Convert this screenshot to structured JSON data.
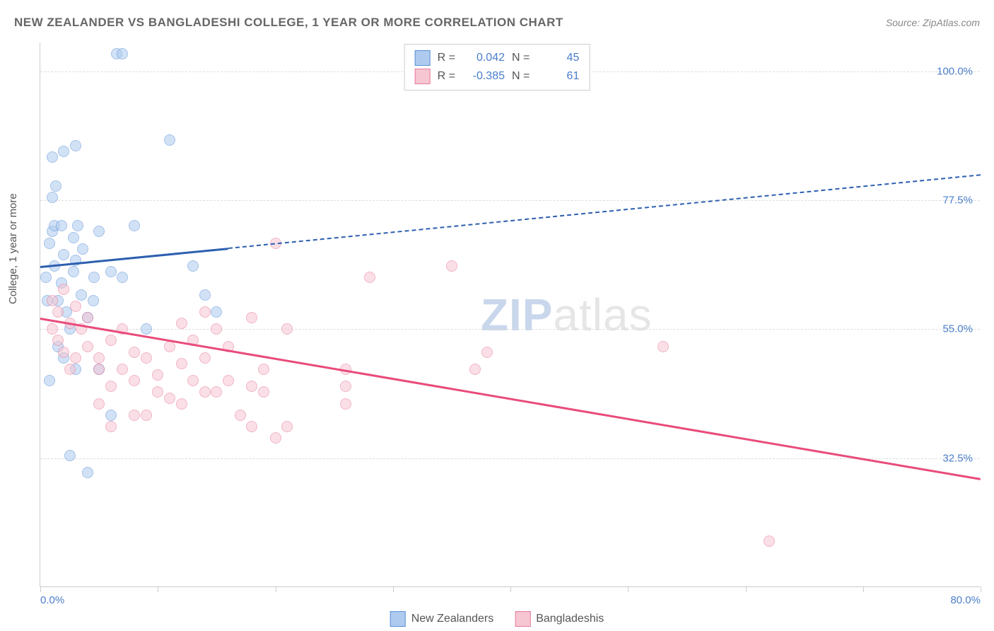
{
  "title": "NEW ZEALANDER VS BANGLADESHI COLLEGE, 1 YEAR OR MORE CORRELATION CHART",
  "source": "Source: ZipAtlas.com",
  "ylabel": "College, 1 year or more",
  "watermark": {
    "part1": "ZIP",
    "part2": "atlas"
  },
  "chart": {
    "type": "scatter",
    "background_color": "#ffffff",
    "grid_color": "#dddddd",
    "axis_color": "#cccccc",
    "xlim": [
      0,
      80
    ],
    "ylim": [
      10,
      105
    ],
    "xticks": [
      0,
      10,
      20,
      30,
      40,
      50,
      60,
      70,
      80
    ],
    "xtick_labels_shown": {
      "0": "0.0%",
      "80": "80.0%"
    },
    "yticks": [
      32.5,
      55.0,
      77.5,
      100.0
    ],
    "ytick_labels": [
      "32.5%",
      "55.0%",
      "77.5%",
      "100.0%"
    ],
    "tick_label_color": "#4a7ec9",
    "tick_label_fontsize": 15,
    "axis_label_fontsize": 15,
    "axis_label_color": "#555555",
    "marker_radius": 8,
    "marker_opacity": 0.55,
    "series": [
      {
        "name": "New Zealanders",
        "marker_fill": "#aecbef",
        "marker_stroke": "#5a8fd6",
        "trend_color": "#2d5fb0",
        "trend_width": 3,
        "trend_dash_continuation": "5,5",
        "R": "0.042",
        "N": "45",
        "trend": {
          "x1": 0,
          "y1": 66,
          "x2": 80,
          "y2": 82,
          "solid_until_x": 16
        },
        "points": [
          [
            0.5,
            64
          ],
          [
            0.8,
            70
          ],
          [
            1,
            72
          ],
          [
            1.2,
            66
          ],
          [
            1.5,
            60
          ],
          [
            1.8,
            63
          ],
          [
            2,
            68
          ],
          [
            2.2,
            58
          ],
          [
            2.5,
            55
          ],
          [
            2.8,
            71
          ],
          [
            3,
            67
          ],
          [
            3.2,
            73
          ],
          [
            3.5,
            61
          ],
          [
            1,
            78
          ],
          [
            1.3,
            80
          ],
          [
            6.5,
            103
          ],
          [
            7,
            103
          ],
          [
            2,
            86
          ],
          [
            3,
            87
          ],
          [
            1,
            85
          ],
          [
            11,
            88
          ],
          [
            5,
            72
          ],
          [
            6,
            65
          ],
          [
            4,
            57
          ],
          [
            5,
            48
          ],
          [
            1.5,
            52
          ],
          [
            2,
            50
          ],
          [
            3,
            48
          ],
          [
            0.8,
            46
          ],
          [
            4.5,
            60
          ],
          [
            7,
            64
          ],
          [
            13,
            66
          ],
          [
            14,
            61
          ],
          [
            15,
            58
          ],
          [
            2.5,
            33
          ],
          [
            4,
            30
          ],
          [
            6,
            40
          ],
          [
            8,
            73
          ],
          [
            1.2,
            73
          ],
          [
            1.8,
            73
          ],
          [
            2.8,
            65
          ],
          [
            0.6,
            60
          ],
          [
            9,
            55
          ],
          [
            3.6,
            69
          ],
          [
            4.6,
            64
          ]
        ]
      },
      {
        "name": "Bangladeshis",
        "marker_fill": "#f6c6d2",
        "marker_stroke": "#e77a9b",
        "trend_color": "#e94b7b",
        "trend_width": 3,
        "R": "-0.385",
        "N": "61",
        "trend": {
          "x1": 0,
          "y1": 57,
          "x2": 80,
          "y2": 29,
          "solid_until_x": 80
        },
        "points": [
          [
            1,
            60
          ],
          [
            1.5,
            58
          ],
          [
            2,
            62
          ],
          [
            2.5,
            56
          ],
          [
            3,
            59
          ],
          [
            3.5,
            55
          ],
          [
            4,
            57
          ],
          [
            1,
            55
          ],
          [
            1.5,
            53
          ],
          [
            2,
            51
          ],
          [
            2.5,
            48
          ],
          [
            3,
            50
          ],
          [
            4,
            52
          ],
          [
            5,
            50
          ],
          [
            6,
            53
          ],
          [
            7,
            55
          ],
          [
            8,
            51
          ],
          [
            5,
            42
          ],
          [
            6,
            45
          ],
          [
            7,
            48
          ],
          [
            8,
            46
          ],
          [
            9,
            50
          ],
          [
            10,
            47
          ],
          [
            11,
            52
          ],
          [
            12,
            49
          ],
          [
            13,
            46
          ],
          [
            14,
            50
          ],
          [
            15,
            55
          ],
          [
            16,
            52
          ],
          [
            17,
            40
          ],
          [
            18,
            45
          ],
          [
            12,
            42
          ],
          [
            14,
            44
          ],
          [
            16,
            46
          ],
          [
            18,
            38
          ],
          [
            20,
            36
          ],
          [
            8,
            40
          ],
          [
            9,
            40
          ],
          [
            10,
            44
          ],
          [
            11,
            43
          ],
          [
            5,
            48
          ],
          [
            6,
            38
          ],
          [
            20,
            70
          ],
          [
            26,
            42
          ],
          [
            26,
            45
          ],
          [
            28,
            64
          ],
          [
            35,
            66
          ],
          [
            37,
            48
          ],
          [
            21,
            55
          ],
          [
            18,
            57
          ],
          [
            26,
            48
          ],
          [
            19,
            48
          ],
          [
            38,
            51
          ],
          [
            53,
            52
          ],
          [
            62,
            18
          ],
          [
            15,
            44
          ],
          [
            12,
            56
          ],
          [
            14,
            58
          ],
          [
            19,
            44
          ],
          [
            21,
            38
          ],
          [
            13,
            53
          ]
        ]
      }
    ]
  },
  "legend_top": {
    "rows": [
      {
        "swatch_fill": "#aecbef",
        "swatch_stroke": "#5a8fd6",
        "r_label": "R =",
        "r_val": "0.042",
        "n_label": "N =",
        "n_val": "45"
      },
      {
        "swatch_fill": "#f6c6d2",
        "swatch_stroke": "#e77a9b",
        "r_label": "R =",
        "r_val": "-0.385",
        "n_label": "N =",
        "n_val": "61"
      }
    ]
  },
  "legend_bottom": {
    "items": [
      {
        "swatch_fill": "#aecbef",
        "swatch_stroke": "#5a8fd6",
        "label": "New Zealanders"
      },
      {
        "swatch_fill": "#f6c6d2",
        "swatch_stroke": "#e77a9b",
        "label": "Bangladeshis"
      }
    ]
  }
}
